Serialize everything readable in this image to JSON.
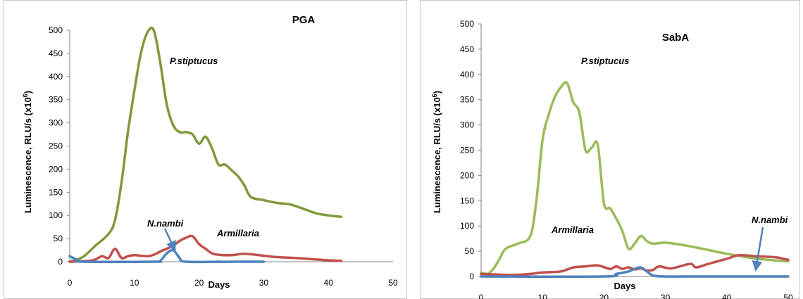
{
  "chart_data": [
    {
      "type": "line",
      "title": "PGA",
      "xlabel": "Days",
      "ylabel_prefix": "Luminescence, RLU/s (x10",
      "ylabel_sup": "6",
      "ylabel_suffix": ")",
      "xlim": [
        0,
        50
      ],
      "ylim": [
        0,
        500
      ],
      "xticks": [
        "0",
        "10",
        "20",
        "30",
        "40",
        "50"
      ],
      "yticks": [
        "0",
        "50",
        "100",
        "150",
        "200",
        "250",
        "300",
        "350",
        "400",
        "450",
        "500"
      ],
      "grid": false,
      "series": [
        {
          "name": "P.stiptucus",
          "color": "#7f9a3a",
          "x": [
            0,
            2,
            4,
            6,
            7,
            8,
            9,
            10,
            11,
            12,
            13,
            14,
            15,
            16,
            17,
            18,
            19,
            20,
            21,
            22,
            23,
            24,
            25,
            26,
            27,
            28,
            30,
            32,
            34,
            36,
            38,
            40,
            42
          ],
          "y": [
            0,
            10,
            35,
            60,
            90,
            170,
            280,
            370,
            450,
            495,
            500,
            430,
            340,
            295,
            280,
            280,
            275,
            255,
            270,
            245,
            210,
            210,
            198,
            185,
            165,
            140,
            133,
            127,
            124,
            115,
            105,
            100,
            97
          ]
        },
        {
          "name": "Armillaria",
          "color": "#c0504d",
          "x": [
            0,
            3,
            4,
            5,
            6,
            7,
            8,
            9,
            10,
            12,
            13,
            14,
            15,
            16,
            17,
            18,
            19,
            20,
            21,
            22,
            23,
            25,
            27,
            30,
            32,
            35,
            38,
            40,
            42
          ],
          "y": [
            0,
            2,
            5,
            12,
            8,
            28,
            8,
            12,
            14,
            12,
            15,
            22,
            28,
            35,
            45,
            52,
            55,
            38,
            28,
            18,
            15,
            14,
            17,
            13,
            10,
            8,
            5,
            3,
            2
          ]
        },
        {
          "name": "N.nambi",
          "color": "#4f81bd",
          "x": [
            0,
            1,
            2,
            13,
            14,
            15,
            16,
            17,
            18,
            25,
            30
          ],
          "y": [
            12,
            5,
            0,
            0,
            2,
            18,
            25,
            8,
            0,
            0,
            0
          ]
        }
      ],
      "annotations": [
        {
          "text": "P.stiptucus"
        },
        {
          "text": "N.nambi"
        },
        {
          "text": "Armillaria"
        }
      ]
    },
    {
      "type": "line",
      "title": "SabA",
      "xlabel": "Days",
      "ylabel_prefix": "Luminescence, RLU/s (x10",
      "ylabel_sup": "6",
      "ylabel_suffix": ")",
      "xlim": [
        0,
        50
      ],
      "ylim": [
        0,
        500
      ],
      "xticks": [
        "0",
        "10",
        "20",
        "30",
        "40",
        "50"
      ],
      "yticks": [
        "0",
        "50",
        "100",
        "150",
        "200",
        "250",
        "300",
        "350",
        "400",
        "450",
        "500"
      ],
      "grid": false,
      "series": [
        {
          "name": "P.stiptucus",
          "color": "#9bbb59",
          "x": [
            0,
            1,
            2,
            3,
            4,
            6,
            8,
            9,
            10,
            11,
            12,
            13,
            14,
            15,
            16,
            17,
            18,
            19,
            20,
            21,
            22,
            23,
            24,
            25,
            26,
            27,
            28,
            30,
            33,
            36,
            40,
            45,
            50
          ],
          "y": [
            8,
            5,
            15,
            35,
            55,
            65,
            80,
            150,
            270,
            320,
            355,
            375,
            383,
            345,
            325,
            250,
            255,
            260,
            145,
            135,
            115,
            90,
            55,
            65,
            80,
            70,
            65,
            67,
            62,
            55,
            45,
            35,
            30
          ]
        },
        {
          "name": "Armillaria",
          "color": "#c0504d",
          "x": [
            0,
            5,
            8,
            10,
            13,
            15,
            17,
            19,
            21,
            22,
            23,
            24,
            25,
            26,
            27,
            28,
            29,
            31,
            34,
            35,
            37,
            40,
            42,
            45,
            48,
            50
          ],
          "y": [
            5,
            3,
            5,
            8,
            10,
            18,
            20,
            22,
            15,
            20,
            15,
            18,
            14,
            16,
            12,
            13,
            20,
            16,
            25,
            18,
            25,
            35,
            42,
            40,
            38,
            33
          ]
        },
        {
          "name": "N.nambi",
          "color": "#4f81bd",
          "x": [
            0,
            20,
            22,
            24,
            25,
            26,
            27,
            28,
            30,
            35,
            40,
            45,
            50
          ],
          "y": [
            0,
            0,
            5,
            10,
            15,
            18,
            10,
            2,
            0,
            0,
            0,
            0,
            0
          ]
        }
      ],
      "annotations": [
        {
          "text": "P.stiptucus"
        },
        {
          "text": "Armillaria"
        },
        {
          "text": "N.nambi"
        }
      ]
    }
  ]
}
